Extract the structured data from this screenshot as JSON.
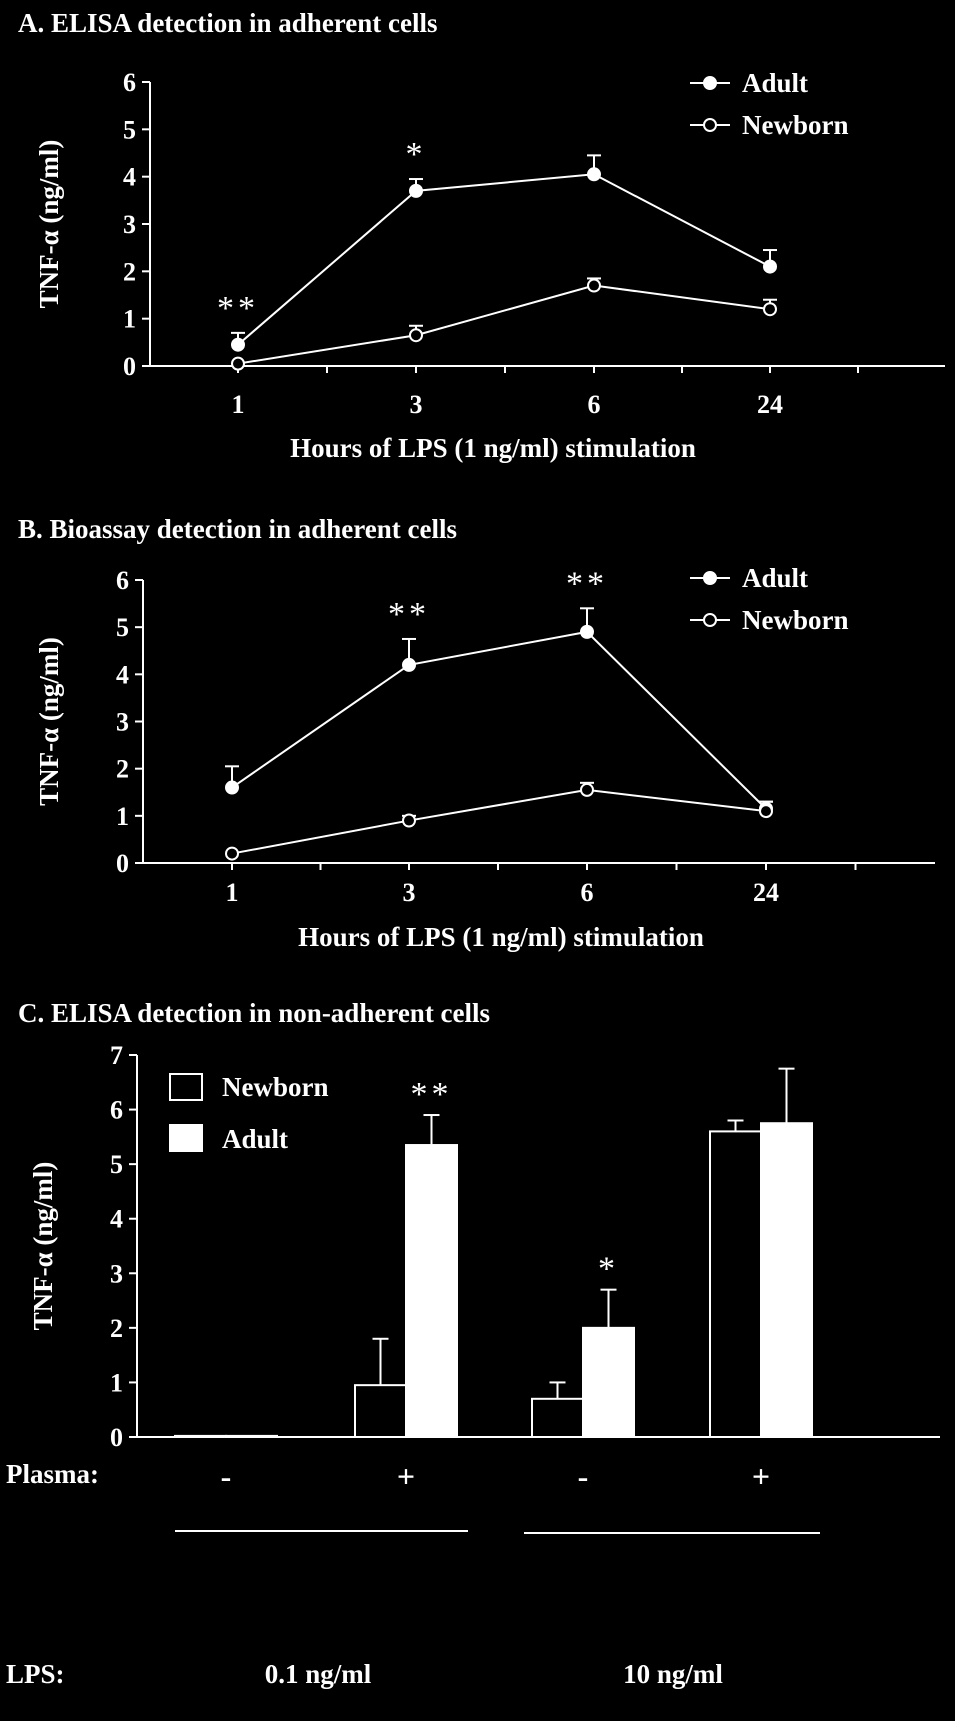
{
  "chart_data": [
    {
      "type": "line",
      "title": "A. ELISA detection in adherent cells",
      "xlabel": "Hours of LPS (1 ng/ml) stimulation",
      "ylabel": "TNF-α (ng/ml)",
      "categories": [
        "1",
        "3",
        "6",
        "24"
      ],
      "ylim": [
        0,
        6
      ],
      "yticks": [
        "0",
        "1",
        "2",
        "3",
        "4",
        "5",
        "6"
      ],
      "series": [
        {
          "name": "Adult",
          "marker": "filled",
          "values": [
            0.45,
            3.7,
            4.05,
            2.1
          ],
          "errors": [
            0.25,
            0.25,
            0.4,
            0.35
          ]
        },
        {
          "name": "Newborn",
          "marker": "open",
          "values": [
            0.05,
            0.65,
            1.7,
            1.2
          ],
          "errors": [
            0.0,
            0.2,
            0.15,
            0.2
          ]
        }
      ],
      "annotations": [
        "**",
        "*",
        "",
        ""
      ],
      "legend": "top-right"
    },
    {
      "type": "line",
      "title": "B. Bioassay detection in adherent cells",
      "xlabel": "Hours of LPS (1 ng/ml) stimulation",
      "ylabel": "TNF-α (ng/ml)",
      "categories": [
        "1",
        "3",
        "6",
        "24"
      ],
      "ylim": [
        0,
        6
      ],
      "yticks": [
        "0",
        "1",
        "2",
        "3",
        "4",
        "5",
        "6"
      ],
      "series": [
        {
          "name": "Adult",
          "marker": "filled",
          "values": [
            1.6,
            4.2,
            4.9,
            1.15
          ],
          "errors": [
            0.45,
            0.55,
            0.5,
            0.15
          ]
        },
        {
          "name": "Newborn",
          "marker": "open",
          "values": [
            0.2,
            0.9,
            1.55,
            1.1
          ],
          "errors": [
            0.0,
            0.1,
            0.15,
            0.2
          ]
        }
      ],
      "annotations": [
        "",
        "**",
        "**",
        ""
      ],
      "legend": "top-right"
    },
    {
      "type": "bar",
      "title": "C. ELISA detection in non-adherent cells",
      "ylabel": "TNF-α (ng/ml)",
      "ylim": [
        0,
        7
      ],
      "yticks": [
        "0",
        "1",
        "2",
        "3",
        "4",
        "5",
        "6",
        "7"
      ],
      "categories": [
        "-",
        "+",
        "-",
        "+"
      ],
      "row_labels": {
        "plasma": "Plasma:",
        "lps": "LPS:"
      },
      "lps_groups": [
        "0.1 ng/ml",
        "10 ng/ml"
      ],
      "series": [
        {
          "name": "Newborn",
          "fill": "open",
          "values": [
            0.02,
            0.95,
            0.7,
            5.6
          ],
          "errors": [
            0,
            0.85,
            0.3,
            0.2
          ]
        },
        {
          "name": "Adult",
          "fill": "solid",
          "values": [
            0.02,
            5.35,
            2.0,
            5.75
          ],
          "errors": [
            0,
            0.55,
            0.7,
            1.0
          ]
        }
      ],
      "annotations": [
        "",
        "**",
        "*",
        ""
      ],
      "legend": "top-left"
    }
  ]
}
